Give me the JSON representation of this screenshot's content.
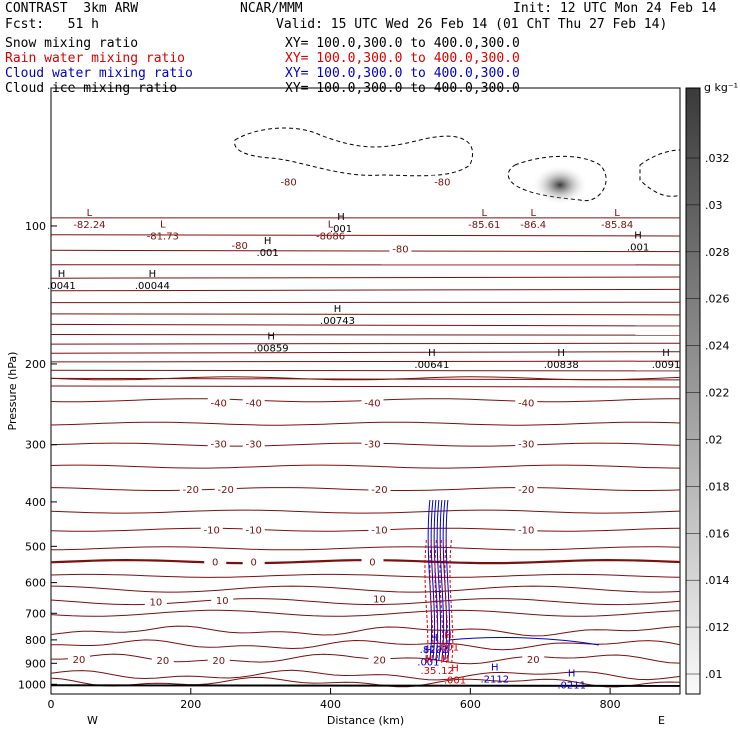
{
  "header": {
    "model": "CONTRAST  3km ARW",
    "forecast": "Fcst:   51 h",
    "org": "NCAR/MMM",
    "init": "Init: 12 UTC Mon 24 Feb 14",
    "valid": "Valid: 15 UTC Wed 26 Feb 14 (01 ChT Thu 27 Feb 14)"
  },
  "legend": [
    {
      "name": "Snow mixing ratio",
      "xy": "XY= 100.0,300.0 to 400.0,300.0",
      "color": "#000000"
    },
    {
      "name": "Rain water mixing ratio",
      "xy": "XY= 100.0,300.0 to 400.0,300.0",
      "color": "#dd0000"
    },
    {
      "name": "Cloud water mixing ratio",
      "xy": "XY= 100.0,300.0 to 400.0,300.0",
      "color": "#0000cc"
    },
    {
      "name": "Cloud ice mixing ratio",
      "xy": "XY= 100.0,300.0 to 400.0,300.0",
      "color": "#000000"
    }
  ],
  "colorbar": {
    "unit": "g kg⁻¹",
    "ticks": [
      ".032",
      ".03",
      ".028",
      ".026",
      ".024",
      ".022",
      ".02",
      ".018",
      ".016",
      ".014",
      ".012",
      ".01"
    ]
  },
  "chart_data": {
    "type": "contour",
    "xlabel": "Distance (km)",
    "ylabel": "Pressure (hPa)",
    "xlim": [
      0,
      900
    ],
    "ylim": [
      1050,
      50
    ],
    "y_scale": "log",
    "x_ticks": [
      "0",
      "200",
      "400",
      "600",
      "800"
    ],
    "y_ticks": [
      "100",
      "200",
      "300",
      "400",
      "500",
      "600",
      "700",
      "800",
      "900",
      "1000"
    ],
    "x_end_labels": {
      "left": "W",
      "right": "E"
    },
    "temperature_contour_color": "#7a1010",
    "isotherm_labels": [
      {
        "value": "-80",
        "x": 340,
        "p": 80
      },
      {
        "value": "-80",
        "x": 560,
        "p": 80
      },
      {
        "value": "-80",
        "x": 500,
        "p": 112
      },
      {
        "value": "-80",
        "x": 270,
        "p": 110
      },
      {
        "value": "-40",
        "x": 240,
        "p": 243
      },
      {
        "value": "-40",
        "x": 290,
        "p": 243
      },
      {
        "value": "-40",
        "x": 460,
        "p": 243
      },
      {
        "value": "-40",
        "x": 680,
        "p": 243
      },
      {
        "value": "-30",
        "x": 240,
        "p": 298
      },
      {
        "value": "-30",
        "x": 290,
        "p": 298
      },
      {
        "value": "-30",
        "x": 460,
        "p": 298
      },
      {
        "value": "-30",
        "x": 680,
        "p": 298
      },
      {
        "value": "-20",
        "x": 200,
        "p": 375
      },
      {
        "value": "-20",
        "x": 250,
        "p": 375
      },
      {
        "value": "-20",
        "x": 470,
        "p": 375
      },
      {
        "value": "-20",
        "x": 680,
        "p": 375
      },
      {
        "value": "-10",
        "x": 230,
        "p": 460
      },
      {
        "value": "-10",
        "x": 290,
        "p": 460
      },
      {
        "value": "-10",
        "x": 470,
        "p": 460
      },
      {
        "value": "-10",
        "x": 680,
        "p": 460
      },
      {
        "value": "0",
        "x": 235,
        "p": 540
      },
      {
        "value": "0",
        "x": 290,
        "p": 540
      },
      {
        "value": "0",
        "x": 460,
        "p": 540
      },
      {
        "value": "10",
        "x": 150,
        "p": 660
      },
      {
        "value": "10",
        "x": 245,
        "p": 655
      },
      {
        "value": "10",
        "x": 470,
        "p": 650
      },
      {
        "value": "20",
        "x": 40,
        "p": 880
      },
      {
        "value": "20",
        "x": 160,
        "p": 885
      },
      {
        "value": "20",
        "x": 240,
        "p": 885
      },
      {
        "value": "20",
        "x": 470,
        "p": 882
      },
      {
        "value": "20",
        "x": 690,
        "p": 880
      }
    ],
    "extrema_labels": [
      {
        "kind": "L",
        "value": "-82.24",
        "x": 55,
        "p": 100,
        "color": "#7a1010"
      },
      {
        "kind": "L",
        "value": "-81.73",
        "x": 160,
        "p": 106,
        "color": "#7a1010"
      },
      {
        "kind": "L",
        "value": "-8686",
        "x": 400,
        "p": 106,
        "color": "#7a1010"
      },
      {
        "kind": "L",
        "value": "-85.61",
        "x": 620,
        "p": 100,
        "color": "#7a1010"
      },
      {
        "kind": "L",
        "value": "-86.4",
        "x": 690,
        "p": 100,
        "color": "#7a1010"
      },
      {
        "kind": "L",
        "value": "-85.84",
        "x": 810,
        "p": 100,
        "color": "#7a1010"
      },
      {
        "kind": "H",
        "value": ".0041",
        "x": 15,
        "p": 136,
        "color": "#000000"
      },
      {
        "kind": "H",
        "value": ".00044",
        "x": 145,
        "p": 136,
        "color": "#000000"
      },
      {
        "kind": "H",
        "value": ".001",
        "x": 310,
        "p": 115,
        "color": "#000000"
      },
      {
        "kind": "H",
        "value": ".001",
        "x": 415,
        "p": 102,
        "color": "#000000"
      },
      {
        "kind": "H",
        "value": ".00743",
        "x": 410,
        "p": 162,
        "color": "#000000"
      },
      {
        "kind": "H",
        "value": ".00859",
        "x": 315,
        "p": 186,
        "color": "#000000"
      },
      {
        "kind": "H",
        "value": ".00641",
        "x": 545,
        "p": 202,
        "color": "#000000"
      },
      {
        "kind": "H",
        "value": ".00838",
        "x": 730,
        "p": 202,
        "color": "#000000"
      },
      {
        "kind": "H",
        "value": ".0091",
        "x": 880,
        "p": 202,
        "color": "#000000"
      },
      {
        "kind": "H",
        "value": ".001",
        "x": 840,
        "p": 112,
        "color": "#000000"
      },
      {
        "kind": "H",
        "value": ".8202",
        "x": 548,
        "p": 845,
        "color": "#0000cc"
      },
      {
        "kind": "H",
        "value": ".001",
        "x": 568,
        "p": 835,
        "color": "#dd0000"
      },
      {
        "kind": "H",
        "value": ".001",
        "x": 540,
        "p": 900,
        "color": "#0000cc"
      },
      {
        "kind": "H",
        "value": ".35",
        "x": 540,
        "p": 940,
        "color": "#dd0000"
      },
      {
        "kind": "H",
        "value": ".12",
        "x": 565,
        "p": 940,
        "color": "#dd0000"
      },
      {
        "kind": "H",
        "value": ".001",
        "x": 578,
        "p": 985,
        "color": "#dd0000"
      },
      {
        "kind": "H",
        "value": ".2112",
        "x": 635,
        "p": 980,
        "color": "#0000cc"
      },
      {
        "kind": "H",
        "value": ".0211",
        "x": 745,
        "p": 1010,
        "color": "#0000cc"
      }
    ]
  }
}
